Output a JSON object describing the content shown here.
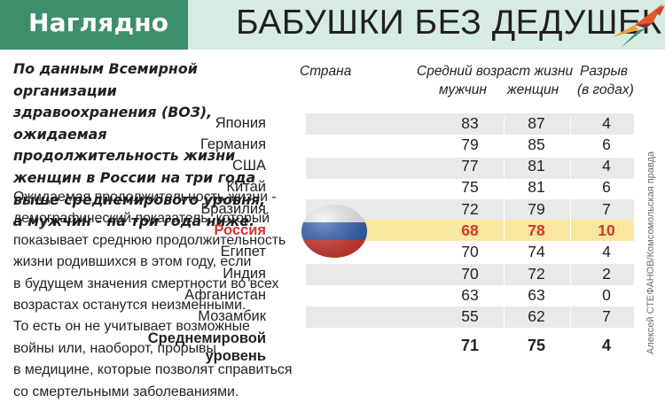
{
  "header": {
    "badge": "Наглядно",
    "title": "БАБУШКИ БЕЗ ДЕДУШЕК"
  },
  "intro": "По данным Всемирной организации\nздравоохранения (ВОЗ), ожидаемая\nпродолжительность жизни\nженщин в России на три года\nвыше среднемирового уровня,\nа мужчин - на три года ниже.",
  "body_text": "Ожидаемая продолжительность жизни -\nдемографический показатель, который\nпоказывает среднюю продолжительность\nжизни родившихся в этом году, если\nв будущем значения смертности во всех\nвозрастах останутся неизменными.\nТо есть он не учитывает возможные\nвойны или, наоборот, прорывы\nв медицине, которые позволят справиться\nсо смертельными заболеваниями.",
  "table": {
    "col_country": "Страна",
    "col_life": "Средний возраст жизни",
    "col_men": "мужчин",
    "col_women": "женщин",
    "col_gap_1": "Разрыв",
    "col_gap_2": "(в годах)",
    "rows": [
      {
        "country": "Япония",
        "men": "83",
        "women": "87",
        "gap": "4"
      },
      {
        "country": "Германия",
        "men": "79",
        "women": "85",
        "gap": "6"
      },
      {
        "country": "США",
        "men": "77",
        "women": "81",
        "gap": "4"
      },
      {
        "country": "Китай",
        "men": "75",
        "women": "81",
        "gap": "6"
      },
      {
        "country": "Бразилия",
        "men": "72",
        "women": "79",
        "gap": "7"
      },
      {
        "country": "Россия",
        "men": "68",
        "women": "78",
        "gap": "10"
      },
      {
        "country": "Египет",
        "men": "70",
        "women": "74",
        "gap": "4"
      },
      {
        "country": "Индия",
        "men": "70",
        "women": "72",
        "gap": "2"
      },
      {
        "country": "Афганистан",
        "men": "63",
        "women": "63",
        "gap": "0"
      },
      {
        "country": "Мозамбик",
        "men": "55",
        "women": "62",
        "gap": "7"
      }
    ],
    "highlight_country": "Россия",
    "world_label": "Среднемировой\nуровень",
    "world_men": "71",
    "world_women": "75",
    "world_gap": "4"
  },
  "credit": "Алексей СТЕФАНОВ/Комсомольская правда",
  "colors": {
    "badge_green": "#3d8f6b",
    "title_band": "#d6ece2",
    "row_band": "#e9e9e9",
    "highlight_band": "#f9e79f",
    "highlight_text": "#d7352f"
  },
  "icons": [
    "bird-logo-icon",
    "russia-flag-icon"
  ]
}
